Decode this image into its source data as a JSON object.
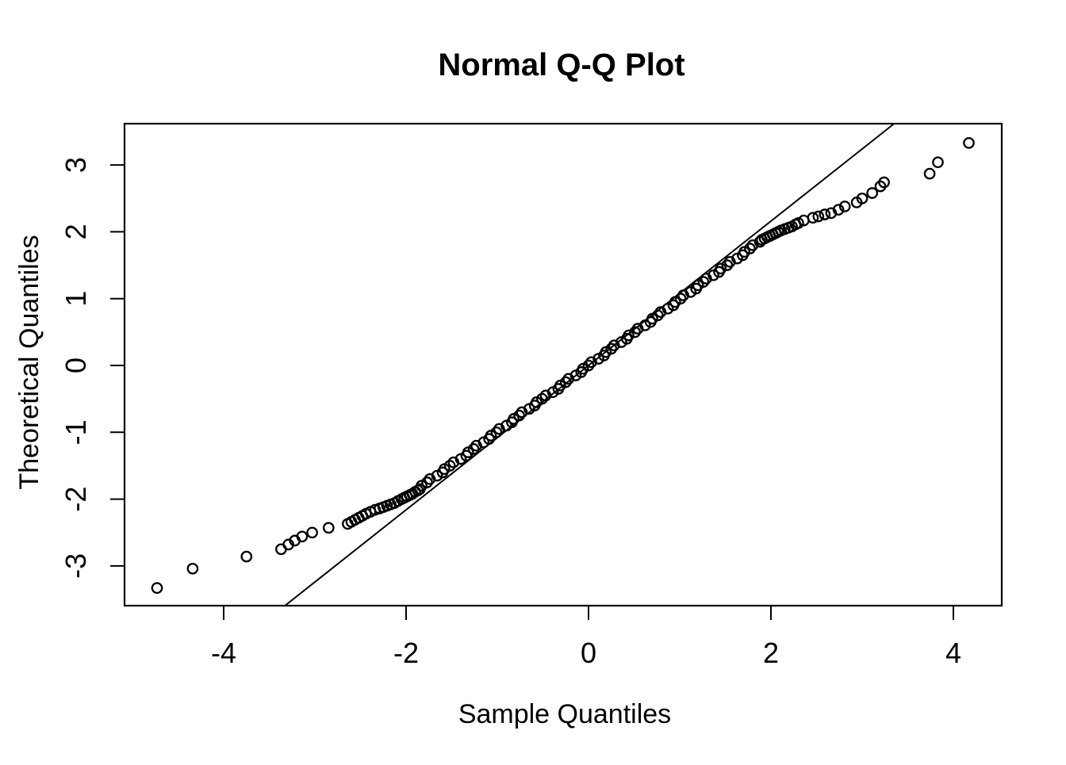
{
  "figure": {
    "background": "#ffffff",
    "foreground": "#000000"
  },
  "chart_data": {
    "type": "scatter",
    "title": "Normal Q-Q Plot",
    "xlabel": "Sample Quantiles",
    "ylabel": "Theoretical Quantiles",
    "x_ticks": [
      -4,
      -2,
      0,
      2,
      4
    ],
    "y_ticks": [
      -3,
      -2,
      -1,
      0,
      1,
      2,
      3
    ],
    "xlim": [
      -5.09,
      4.53
    ],
    "ylim": [
      -3.59,
      3.62
    ],
    "grid": false,
    "legend": null,
    "marker": "open-circle",
    "marker_color": "#000000",
    "reference_line": {
      "slope": 1.08,
      "intercept": 0
    },
    "points": [
      [
        -4.73,
        -3.33
      ],
      [
        -4.34,
        -3.04
      ],
      [
        -3.75,
        -2.86
      ],
      [
        -3.37,
        -2.75
      ],
      [
        -3.29,
        -2.68
      ],
      [
        -3.22,
        -2.62
      ],
      [
        -3.14,
        -2.56
      ],
      [
        -3.03,
        -2.5
      ],
      [
        -2.85,
        -2.43
      ],
      [
        -2.64,
        -2.37
      ],
      [
        -2.6,
        -2.34
      ],
      [
        -2.56,
        -2.31
      ],
      [
        -2.52,
        -2.28
      ],
      [
        -2.48,
        -2.25
      ],
      [
        -2.44,
        -2.22
      ],
      [
        -2.39,
        -2.19
      ],
      [
        -2.34,
        -2.16
      ],
      [
        -2.29,
        -2.14
      ],
      [
        -2.25,
        -2.12
      ],
      [
        -2.21,
        -2.1
      ],
      [
        -2.17,
        -2.08
      ],
      [
        -2.13,
        -2.06
      ],
      [
        -2.09,
        -2.03
      ],
      [
        -2.05,
        -2.0
      ],
      [
        -2.02,
        -1.98
      ],
      [
        -1.99,
        -1.96
      ],
      [
        -1.96,
        -1.94
      ],
      [
        -1.93,
        -1.92
      ],
      [
        -1.9,
        -1.89
      ],
      [
        -1.87,
        -1.87
      ],
      [
        -1.85,
        -1.85
      ],
      [
        -1.83,
        -1.8
      ],
      [
        -1.77,
        -1.75
      ],
      [
        -1.74,
        -1.7
      ],
      [
        -1.66,
        -1.65
      ],
      [
        -1.6,
        -1.6
      ],
      [
        -1.58,
        -1.55
      ],
      [
        -1.52,
        -1.5
      ],
      [
        -1.48,
        -1.45
      ],
      [
        -1.4,
        -1.4
      ],
      [
        -1.34,
        -1.35
      ],
      [
        -1.32,
        -1.3
      ],
      [
        -1.26,
        -1.25
      ],
      [
        -1.23,
        -1.2
      ],
      [
        -1.15,
        -1.15
      ],
      [
        -1.09,
        -1.1
      ],
      [
        -1.07,
        -1.05
      ],
      [
        -1.01,
        -1.0
      ],
      [
        -0.98,
        -0.95
      ],
      [
        -0.9,
        -0.9
      ],
      [
        -0.84,
        -0.85
      ],
      [
        -0.82,
        -0.8
      ],
      [
        -0.76,
        -0.75
      ],
      [
        -0.73,
        -0.7
      ],
      [
        -0.65,
        -0.65
      ],
      [
        -0.59,
        -0.6
      ],
      [
        -0.57,
        -0.55
      ],
      [
        -0.51,
        -0.5
      ],
      [
        -0.47,
        -0.45
      ],
      [
        -0.39,
        -0.4
      ],
      [
        -0.33,
        -0.35
      ],
      [
        -0.31,
        -0.3
      ],
      [
        -0.25,
        -0.25
      ],
      [
        -0.22,
        -0.2
      ],
      [
        -0.14,
        -0.15
      ],
      [
        -0.08,
        -0.1
      ],
      [
        -0.06,
        -0.05
      ],
      [
        0.0,
        0.0
      ],
      [
        0.03,
        0.05
      ],
      [
        0.11,
        0.1
      ],
      [
        0.17,
        0.15
      ],
      [
        0.19,
        0.2
      ],
      [
        0.25,
        0.25
      ],
      [
        0.28,
        0.3
      ],
      [
        0.36,
        0.35
      ],
      [
        0.42,
        0.4
      ],
      [
        0.44,
        0.45
      ],
      [
        0.51,
        0.5
      ],
      [
        0.54,
        0.55
      ],
      [
        0.62,
        0.6
      ],
      [
        0.68,
        0.65
      ],
      [
        0.7,
        0.7
      ],
      [
        0.76,
        0.75
      ],
      [
        0.79,
        0.8
      ],
      [
        0.87,
        0.85
      ],
      [
        0.93,
        0.9
      ],
      [
        0.95,
        0.95
      ],
      [
        1.01,
        1.0
      ],
      [
        1.04,
        1.05
      ],
      [
        1.12,
        1.1
      ],
      [
        1.18,
        1.15
      ],
      [
        1.2,
        1.2
      ],
      [
        1.26,
        1.25
      ],
      [
        1.29,
        1.3
      ],
      [
        1.37,
        1.35
      ],
      [
        1.43,
        1.4
      ],
      [
        1.45,
        1.45
      ],
      [
        1.52,
        1.5
      ],
      [
        1.55,
        1.55
      ],
      [
        1.63,
        1.6
      ],
      [
        1.69,
        1.65
      ],
      [
        1.71,
        1.7
      ],
      [
        1.77,
        1.75
      ],
      [
        1.8,
        1.8
      ],
      [
        1.88,
        1.85
      ],
      [
        1.9,
        1.88
      ],
      [
        1.93,
        1.9
      ],
      [
        1.96,
        1.92
      ],
      [
        1.99,
        1.94
      ],
      [
        2.02,
        1.96
      ],
      [
        2.05,
        1.98
      ],
      [
        2.08,
        2.0
      ],
      [
        2.11,
        2.02
      ],
      [
        2.15,
        2.04
      ],
      [
        2.19,
        2.06
      ],
      [
        2.23,
        2.08
      ],
      [
        2.27,
        2.11
      ],
      [
        2.3,
        2.13
      ],
      [
        2.36,
        2.17
      ],
      [
        2.46,
        2.21
      ],
      [
        2.52,
        2.23
      ],
      [
        2.59,
        2.26
      ],
      [
        2.66,
        2.28
      ],
      [
        2.74,
        2.33
      ],
      [
        2.81,
        2.38
      ],
      [
        2.94,
        2.44
      ],
      [
        3.0,
        2.5
      ],
      [
        3.11,
        2.58
      ],
      [
        3.2,
        2.68
      ],
      [
        3.24,
        2.74
      ],
      [
        3.74,
        2.87
      ],
      [
        3.83,
        3.04
      ],
      [
        4.17,
        3.33
      ]
    ]
  }
}
